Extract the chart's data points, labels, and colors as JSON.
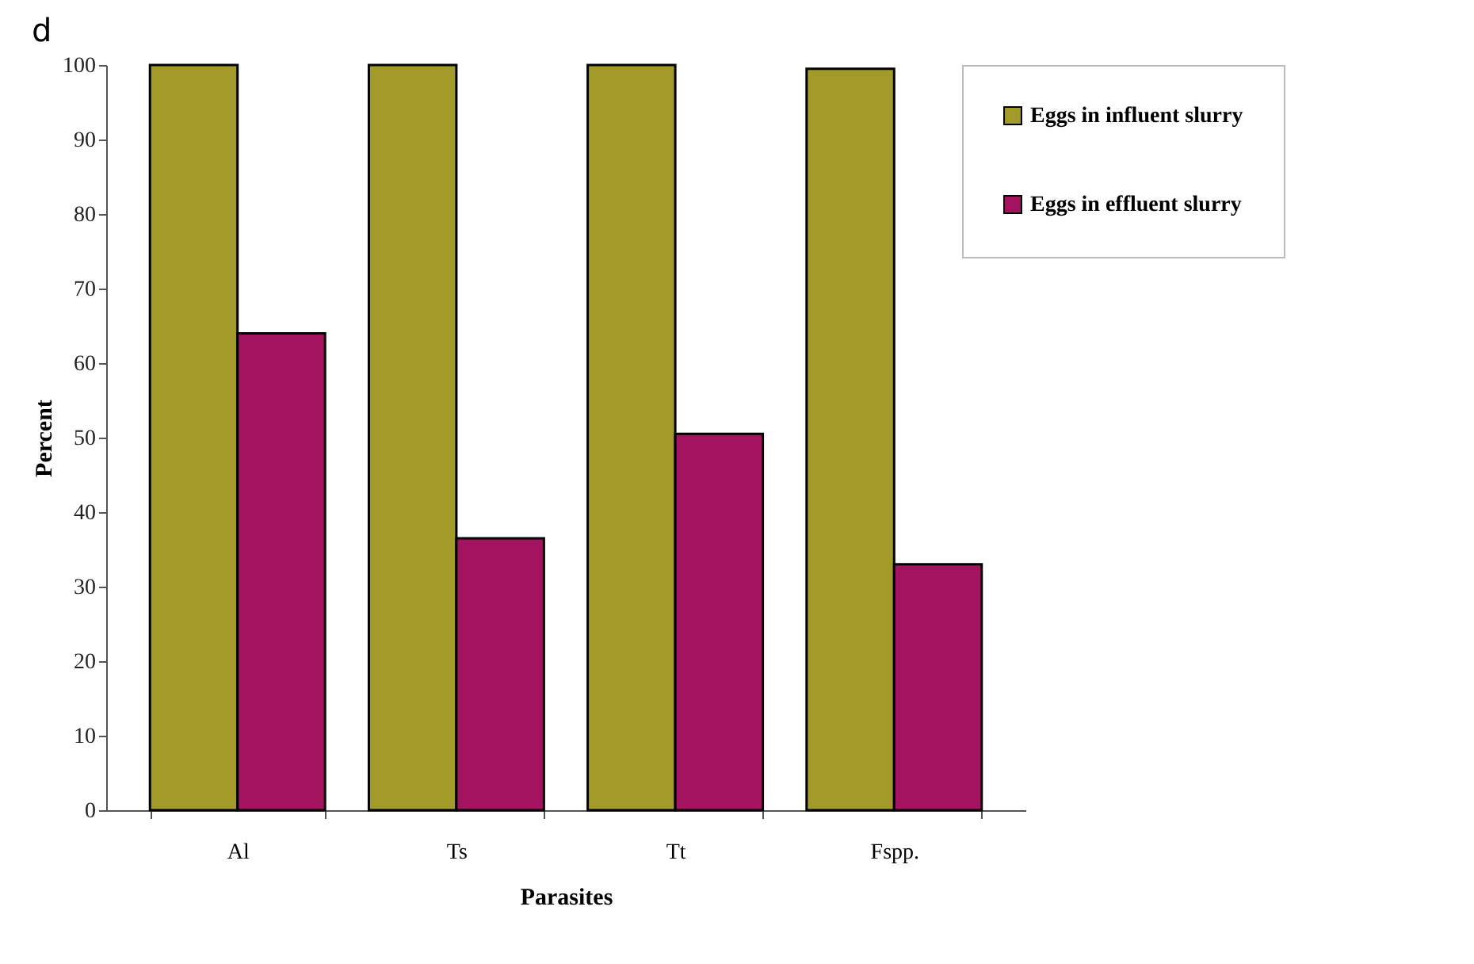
{
  "chart_data": {
    "type": "bar",
    "title": "d",
    "xlabel": "Parasites",
    "ylabel": "Percent",
    "categories": [
      "Al",
      "Ts",
      "Tt",
      "Fspp."
    ],
    "series": [
      {
        "name": "Eggs in influent slurry",
        "color": "#a29b2a",
        "values": [
          100,
          100,
          100,
          99.5
        ]
      },
      {
        "name": "Eggs in effluent slurry",
        "color": "#a3135f",
        "values": [
          64,
          36.5,
          50.5,
          33
        ]
      }
    ],
    "ylim": [
      0,
      100
    ],
    "yticks": [
      0,
      10,
      20,
      30,
      40,
      50,
      60,
      70,
      80,
      90,
      100
    ],
    "legend": "right"
  }
}
